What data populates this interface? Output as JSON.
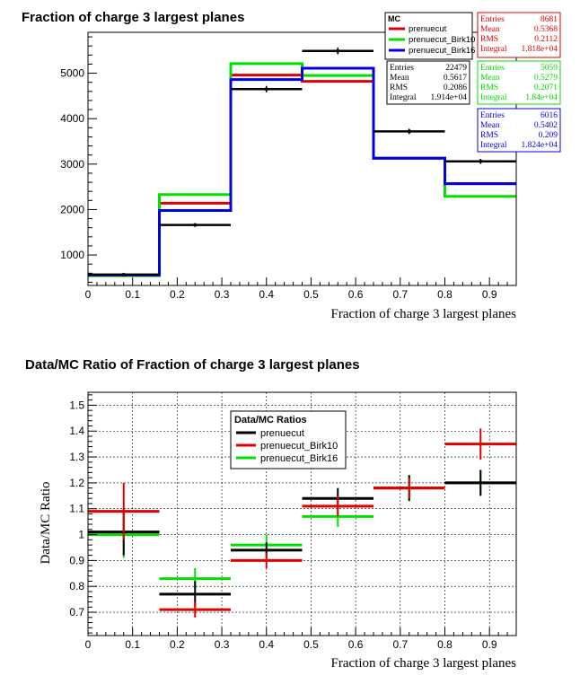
{
  "colors": {
    "data": "#000000",
    "prenuecut": "#e00000",
    "Birk10": "#00e000",
    "Birk16": "#0000e0"
  },
  "chart_data": [
    {
      "type": "histogram",
      "title": "Fraction of charge 3 largest planes",
      "xlabel": "Fraction of charge 3 largest planes",
      "ylabel": "",
      "xlim": [
        0,
        0.96
      ],
      "ylim": [
        330,
        5900
      ],
      "xticks": [
        "0",
        "0.1",
        "0.2",
        "0.3",
        "0.4",
        "0.5",
        "0.6",
        "0.7",
        "0.8",
        "0.9"
      ],
      "yticks": [
        "1000",
        "2000",
        "3000",
        "4000",
        "5000"
      ],
      "bin_edges": [
        0,
        0.16,
        0.32,
        0.48,
        0.64,
        0.8,
        0.96
      ],
      "data_points": {
        "name": "",
        "x": [
          0.08,
          0.24,
          0.4,
          0.56,
          0.72,
          0.88
        ],
        "y": [
          570,
          1660,
          4650,
          5490,
          3720,
          3060
        ],
        "yerr": [
          25,
          40,
          70,
          75,
          60,
          55
        ]
      },
      "series": [
        {
          "name": "prenuecut",
          "values": [
            555,
            2140,
            4960,
            4820,
            3130,
            2570
          ]
        },
        {
          "name": "prenuecut_Birk10",
          "values": [
            545,
            2330,
            5210,
            4950,
            3130,
            2290
          ]
        },
        {
          "name": "prenuecut_Birk16",
          "values": [
            560,
            1980,
            4860,
            5110,
            3130,
            2570
          ]
        }
      ],
      "legend": {
        "title": "MC",
        "entries": [
          "prenuecut",
          "prenuecut_Birk10",
          "prenuecut_Birk16"
        ],
        "placement": "top-right"
      },
      "stat_boxes": [
        {
          "color": "#e00000",
          "rows": [
            [
              "Entries",
              "8681"
            ],
            [
              "Mean",
              "0.5368"
            ],
            [
              "RMS",
              "0.2112"
            ],
            [
              "Integral",
              "1.818e+04"
            ]
          ]
        },
        {
          "color": "#000000",
          "rows": [
            [
              "Entries",
              "22479"
            ],
            [
              "Mean",
              "0.5617"
            ],
            [
              "RMS",
              "0.2086"
            ],
            [
              "Integral",
              "1.914e+04"
            ]
          ]
        },
        {
          "color": "#00e000",
          "rows": [
            [
              "Entries",
              "5059"
            ],
            [
              "Mean",
              "0.5279"
            ],
            [
              "RMS",
              "0.2071"
            ],
            [
              "Integral",
              "1.84e+04"
            ]
          ]
        },
        {
          "color": "#0000e0",
          "rows": [
            [
              "Entries",
              "6016"
            ],
            [
              "Mean",
              "0.5402"
            ],
            [
              "RMS",
              "0.209"
            ],
            [
              "Integral",
              "1.824e+04"
            ]
          ]
        }
      ],
      "grid": false
    },
    {
      "type": "scatter",
      "title": "Data/MC Ratio of Fraction of charge 3 largest planes",
      "xlabel": "Fraction of charge 3 largest planes",
      "ylabel": "Data/MC Ratio",
      "xlim": [
        0,
        0.96
      ],
      "ylim": [
        0.61,
        1.55
      ],
      "xticks": [
        "0",
        "0.1",
        "0.2",
        "0.3",
        "0.4",
        "0.5",
        "0.6",
        "0.7",
        "0.8",
        "0.9"
      ],
      "yticks": [
        "0.7",
        "0.8",
        "0.9",
        "1",
        "1.1",
        "1.2",
        "1.3",
        "1.4",
        "1.5"
      ],
      "x": [
        0.08,
        0.24,
        0.4,
        0.56,
        0.72,
        0.88
      ],
      "xerr": 0.08,
      "series": [
        {
          "name": "prenuecut",
          "values": [
            1.01,
            0.77,
            0.94,
            1.14,
            1.18,
            1.2
          ],
          "errors": [
            0.09,
            0.05,
            0.03,
            0.04,
            0.05,
            0.05
          ]
        },
        {
          "name": "prenuecut_Birk10",
          "values": [
            1.09,
            0.71,
            0.9,
            1.11,
            1.18,
            1.35
          ],
          "errors": [
            0.11,
            0.03,
            0.03,
            0.04,
            0.04,
            0.06
          ]
        },
        {
          "name": "prenuecut_Birk16",
          "values": [
            1.0,
            0.83,
            0.96,
            1.07,
            1.18,
            1.2
          ],
          "errors": [
            0.09,
            0.04,
            0.04,
            0.04,
            0.05,
            0.05
          ]
        }
      ],
      "legend": {
        "title": "Data/MC Ratios",
        "entries": [
          "prenuecut",
          "prenuecut_Birk10",
          "prenuecut_Birk16"
        ],
        "placement": "top-center"
      },
      "grid": true
    }
  ]
}
